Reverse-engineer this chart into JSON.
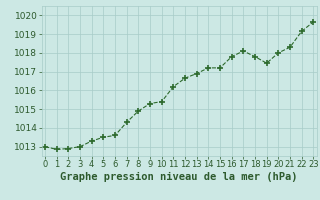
{
  "x": [
    0,
    1,
    2,
    3,
    4,
    5,
    6,
    7,
    8,
    9,
    10,
    11,
    12,
    13,
    14,
    15,
    16,
    17,
    18,
    19,
    20,
    21,
    22,
    23
  ],
  "y": [
    1013.0,
    1012.85,
    1012.9,
    1013.0,
    1013.3,
    1013.5,
    1013.6,
    1014.3,
    1014.9,
    1015.3,
    1015.4,
    1016.2,
    1016.65,
    1016.9,
    1017.2,
    1017.2,
    1017.8,
    1018.1,
    1017.8,
    1017.45,
    1018.0,
    1018.3,
    1019.15,
    1019.65
  ],
  "line_color": "#2d6a2d",
  "marker": "+",
  "marker_color": "#2d6a2d",
  "bg_color": "#cce8e4",
  "grid_color": "#a8ccc8",
  "ylabel_ticks": [
    1013,
    1014,
    1015,
    1016,
    1017,
    1018,
    1019,
    1020
  ],
  "xlabel": "Graphe pression niveau de la mer (hPa)",
  "xlabel_color": "#2d5a2d",
  "tick_color": "#2d5a2d",
  "ylim": [
    1012.5,
    1020.5
  ],
  "xlim": [
    -0.3,
    23.3
  ],
  "tick_fontsize": 6.5,
  "xlabel_fontsize": 7.5
}
